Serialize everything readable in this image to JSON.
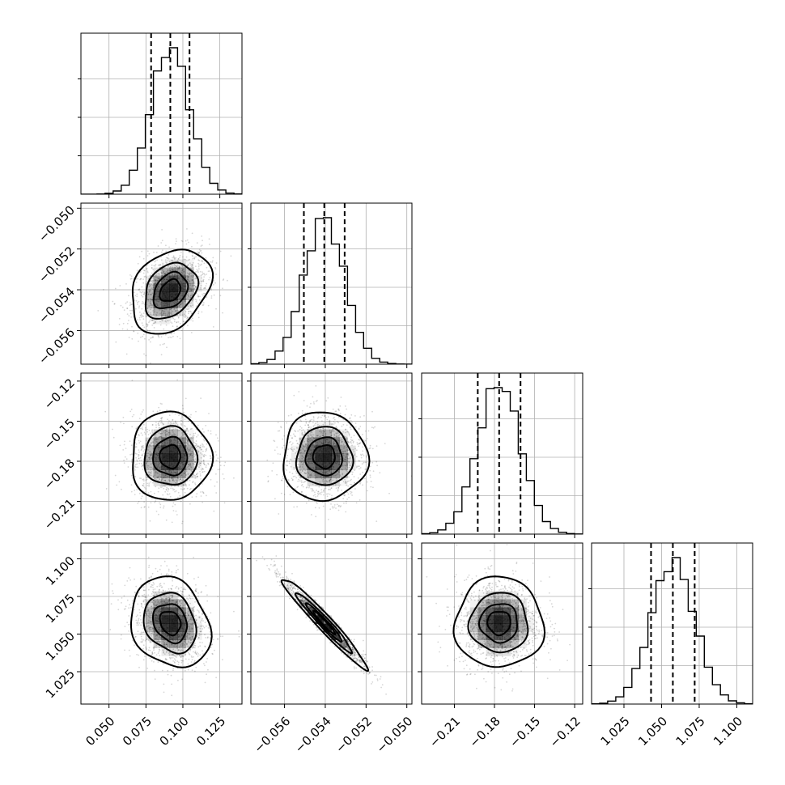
{
  "chart_data": {
    "type": "corner",
    "grid": true,
    "parameters": [
      {
        "mean": 0.0915,
        "sigma": 0.013,
        "q16": 0.0785,
        "q50": 0.0915,
        "q84": 0.1045,
        "range": [
          0.031,
          0.14
        ],
        "ticks": [
          0.05,
          0.075,
          0.1,
          0.125
        ],
        "tick_labels": [
          "0.050",
          "0.075",
          "0.100",
          "0.125"
        ]
      },
      {
        "mean": -0.05405,
        "sigma": 0.001,
        "q16": -0.05505,
        "q50": -0.05405,
        "q84": -0.05305,
        "range": [
          -0.05765,
          -0.04975
        ],
        "ticks": [
          -0.056,
          -0.054,
          -0.052,
          -0.05
        ],
        "tick_labels": [
          "−0.056",
          "−0.054",
          "−0.052",
          "−0.050"
        ]
      },
      {
        "mean": -0.1765,
        "sigma": 0.016,
        "q16": -0.1925,
        "q50": -0.1765,
        "q84": -0.1605,
        "range": [
          -0.2345,
          -0.114
        ],
        "ticks": [
          -0.21,
          -0.18,
          -0.15,
          -0.12
        ],
        "tick_labels": [
          "−0.21",
          "−0.18",
          "−0.15",
          "−0.12"
        ]
      },
      {
        "mean": 1.0575,
        "sigma": 0.0145,
        "q16": 1.043,
        "q50": 1.0575,
        "q84": 1.072,
        "range": [
          1.0035,
          1.1105
        ],
        "ticks": [
          1.025,
          1.05,
          1.075,
          1.1
        ],
        "tick_labels": [
          "1.025",
          "1.050",
          "1.075",
          "1.100"
        ]
      }
    ],
    "correlations": [
      [
        1,
        0.3,
        0.0,
        -0.2
      ],
      [
        0.3,
        1,
        0.0,
        -0.97
      ],
      [
        0.0,
        0.0,
        1,
        0.0
      ],
      [
        -0.2,
        -0.97,
        0.0,
        1
      ]
    ],
    "contour_levels_sigma": [
      0.5,
      1.0,
      1.5,
      2.0
    ]
  }
}
